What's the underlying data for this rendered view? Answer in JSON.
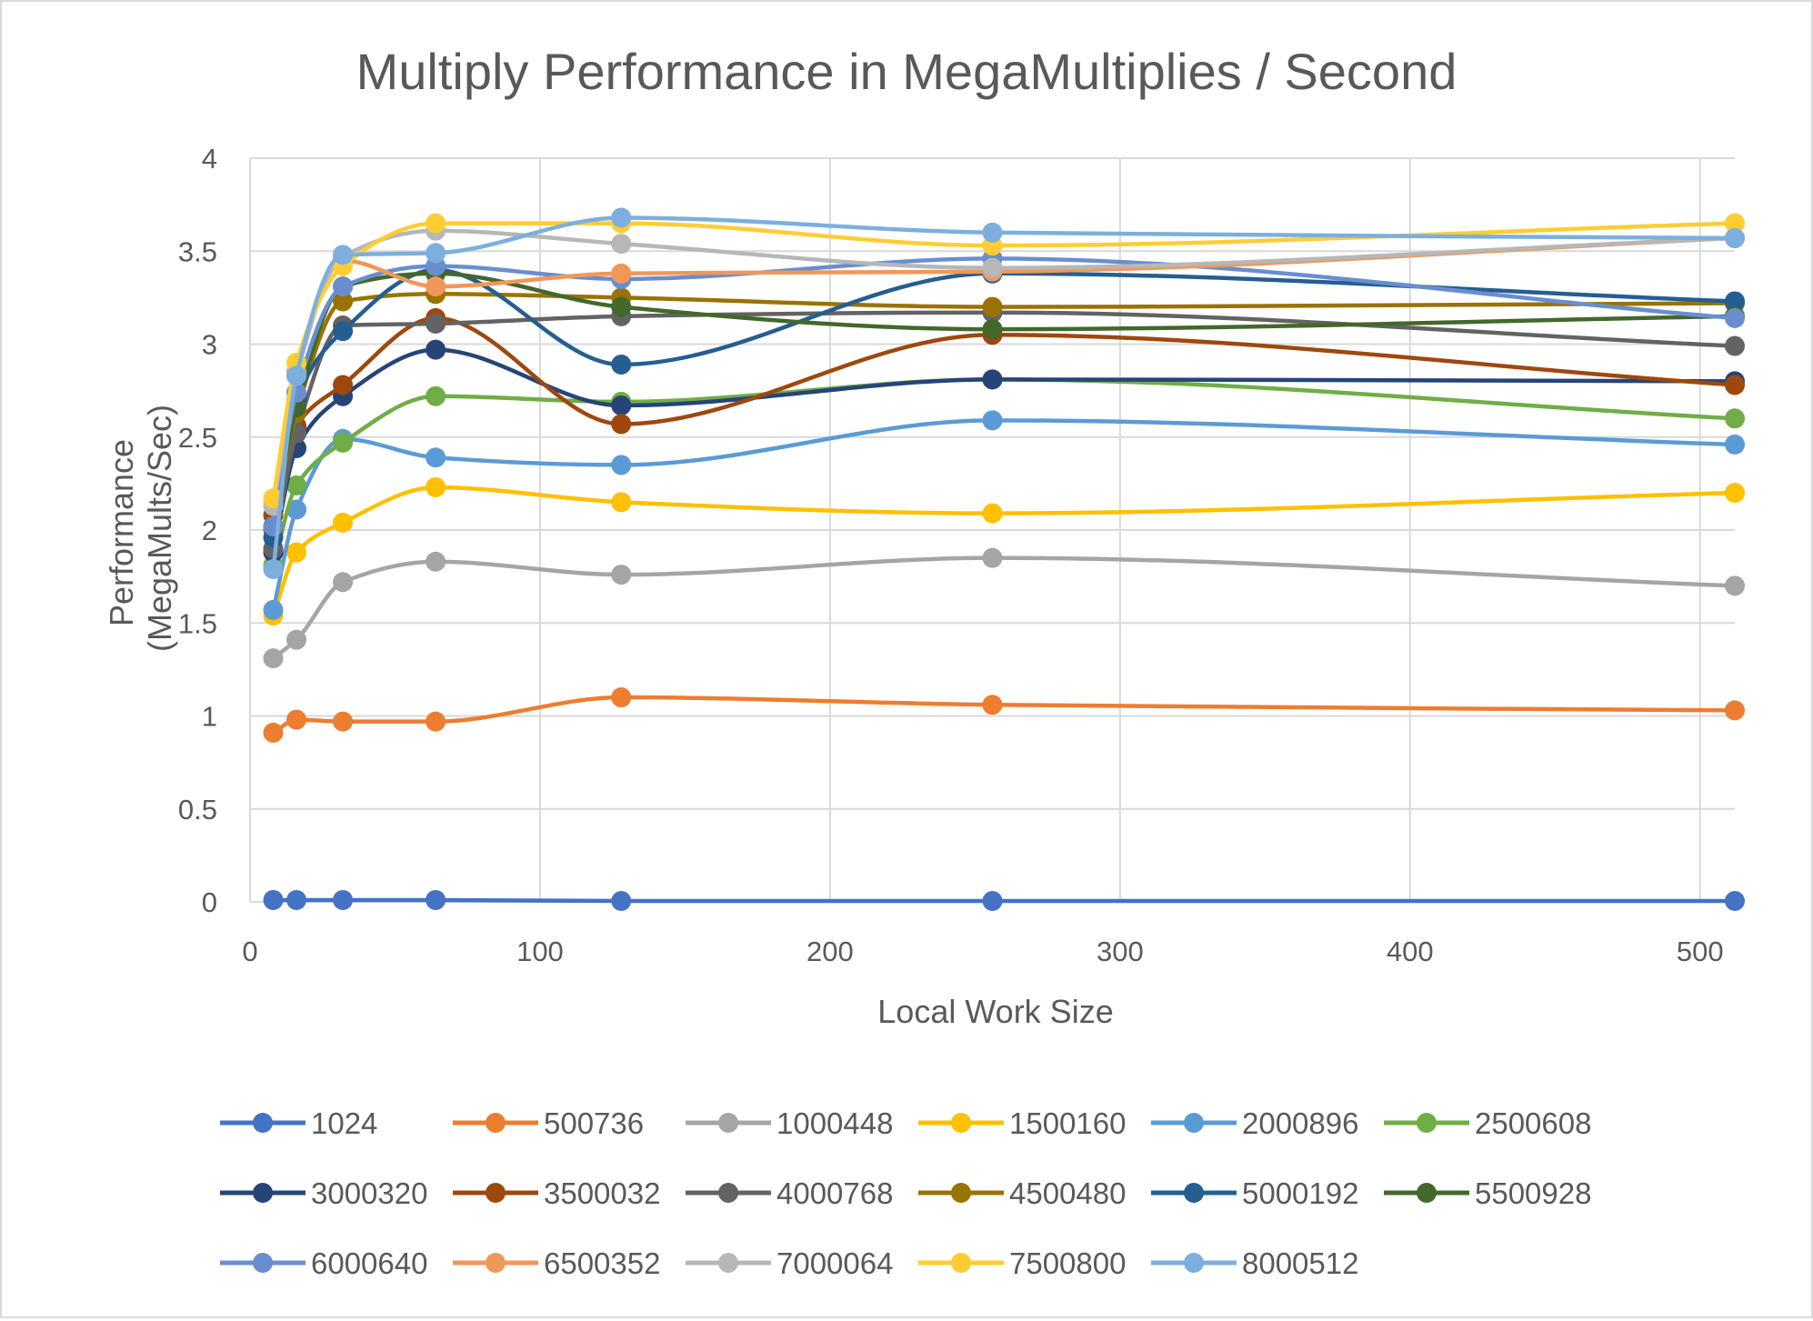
{
  "chart_data": {
    "type": "line",
    "title": "Multiply Performance in MegaMultiplies / Second",
    "xlabel": "Local Work Size",
    "ylabel": "Performance (MegaMults/Sec)",
    "ylabel_lines": [
      "Performance",
      "(MegaMults/Sec)"
    ],
    "xlim": [
      0,
      512
    ],
    "ylim": [
      0,
      4
    ],
    "x_ticks": [
      0,
      100,
      200,
      300,
      400,
      500
    ],
    "x_tick_labels": [
      "0",
      "100",
      "200",
      "300",
      "400",
      "500"
    ],
    "y_ticks": [
      0,
      0.5,
      1,
      1.5,
      2,
      2.5,
      3,
      3.5,
      4
    ],
    "y_tick_labels": [
      "0",
      "0.5",
      "1",
      "1.5",
      "2",
      "2.5",
      "3",
      "3.5",
      "4"
    ],
    "grid": true,
    "smooth": true,
    "legend_position": "bottom",
    "x": [
      8,
      16,
      32,
      64,
      128,
      256,
      512
    ],
    "series": [
      {
        "name": "1024",
        "color": "#4472C4",
        "values": [
          0.01,
          0.01,
          0.01,
          0.01,
          0.005,
          0.005,
          0.005
        ]
      },
      {
        "name": "500736",
        "color": "#ED7D31",
        "values": [
          0.91,
          0.98,
          0.97,
          0.97,
          1.1,
          1.06,
          1.03
        ]
      },
      {
        "name": "1000448",
        "color": "#A5A5A5",
        "values": [
          1.31,
          1.41,
          1.72,
          1.83,
          1.76,
          1.85,
          1.7
        ]
      },
      {
        "name": "1500160",
        "color": "#FFC000",
        "values": [
          1.54,
          1.88,
          2.04,
          2.23,
          2.15,
          2.09,
          2.2
        ]
      },
      {
        "name": "2000896",
        "color": "#5B9BD5",
        "values": [
          1.57,
          2.11,
          2.49,
          2.39,
          2.35,
          2.59,
          2.46
        ]
      },
      {
        "name": "2500608",
        "color": "#70AD47",
        "values": [
          1.81,
          2.24,
          2.47,
          2.72,
          2.69,
          2.81,
          2.6
        ]
      },
      {
        "name": "3000320",
        "color": "#264478",
        "values": [
          1.88,
          2.44,
          2.72,
          2.97,
          2.67,
          2.81,
          2.8
        ]
      },
      {
        "name": "3500032",
        "color": "#9E480E",
        "values": [
          2.08,
          2.56,
          2.78,
          3.14,
          2.57,
          3.05,
          2.78
        ]
      },
      {
        "name": "4000768",
        "color": "#636363",
        "values": [
          1.9,
          2.52,
          3.1,
          3.11,
          3.15,
          3.17,
          2.99
        ]
      },
      {
        "name": "4500480",
        "color": "#997300",
        "values": [
          2.0,
          2.63,
          3.23,
          3.27,
          3.25,
          3.2,
          3.22
        ]
      },
      {
        "name": "5000192",
        "color": "#255E91",
        "values": [
          1.96,
          2.7,
          3.07,
          3.4,
          2.89,
          3.38,
          3.23
        ]
      },
      {
        "name": "5500928",
        "color": "#43682B",
        "values": [
          2.02,
          2.66,
          3.31,
          3.38,
          3.2,
          3.08,
          3.15
        ]
      },
      {
        "name": "6000640",
        "color": "#698ED0",
        "values": [
          2.02,
          2.74,
          3.31,
          3.42,
          3.35,
          3.46,
          3.14
        ]
      },
      {
        "name": "6500352",
        "color": "#F1975A",
        "values": [
          2.14,
          2.85,
          3.45,
          3.31,
          3.38,
          3.39,
          3.57
        ]
      },
      {
        "name": "7000064",
        "color": "#B7B7B7",
        "values": [
          2.13,
          2.83,
          3.47,
          3.61,
          3.54,
          3.41,
          3.57
        ]
      },
      {
        "name": "7500800",
        "color": "#FFCD33",
        "values": [
          2.17,
          2.9,
          3.42,
          3.65,
          3.65,
          3.53,
          3.65
        ]
      },
      {
        "name": "8000512",
        "color": "#7CAFDD",
        "values": [
          1.79,
          2.83,
          3.48,
          3.49,
          3.68,
          3.6,
          3.57
        ]
      }
    ]
  }
}
